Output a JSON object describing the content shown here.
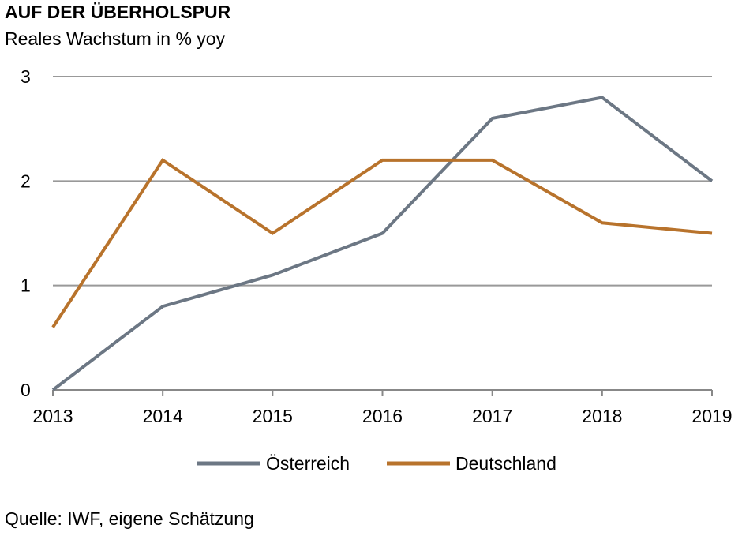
{
  "chart_data": {
    "type": "line",
    "title": "AUF DER ÜBERHOLSPUR",
    "subtitle": "Reales Wachstum in % yoy",
    "x": [
      "2013",
      "2014",
      "2015",
      "2016",
      "2017",
      "2018",
      "2019"
    ],
    "yticks": [
      "0",
      "1",
      "2",
      "3"
    ],
    "ylim": [
      0,
      3
    ],
    "grid": true,
    "legend": "bottom",
    "series": [
      {
        "name": "Österreich",
        "color": "#6c7784",
        "values": [
          0,
          0.8,
          1.1,
          1.5,
          2.6,
          2.8,
          2.0
        ]
      },
      {
        "name": "Deutschland",
        "color": "#b8732c",
        "values": [
          0.6,
          2.2,
          1.5,
          2.2,
          2.2,
          1.6,
          1.5
        ]
      }
    ],
    "source": "Quelle: IWF, eigene Schätzung"
  }
}
